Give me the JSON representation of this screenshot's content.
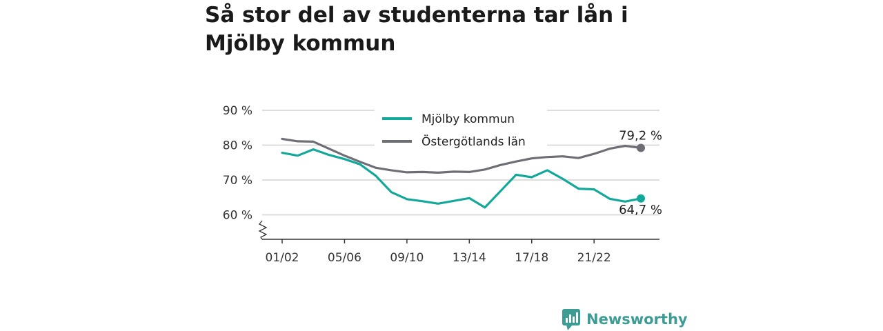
{
  "title": "Så stor del av studenterna tar lån i Mjölby kommun",
  "brand": {
    "name": "Newsworthy",
    "color": "#3d9d94",
    "icon": "newsworthy-logo-icon"
  },
  "colors": {
    "mjolby": "#12a89a",
    "lan": "#6e6e76",
    "grid": "#dddddd",
    "axis": "#333333"
  },
  "chart_data": {
    "type": "line",
    "title": "",
    "xlabel": "",
    "ylabel": "",
    "ylim": [
      53,
      90
    ],
    "y_ticks": [
      60,
      70,
      80,
      90
    ],
    "y_tick_labels": [
      "60 %",
      "70 %",
      "80 %",
      "90 %"
    ],
    "axis_break": true,
    "grid": true,
    "legend": "top-center",
    "x": [
      "01/02",
      "02/03",
      "03/04",
      "04/05",
      "05/06",
      "06/07",
      "07/08",
      "08/09",
      "09/10",
      "10/11",
      "11/12",
      "12/13",
      "13/14",
      "14/15",
      "15/16",
      "16/17",
      "17/18",
      "18/19",
      "19/20",
      "20/21",
      "21/22",
      "22/23",
      "23/24",
      "24/25"
    ],
    "x_tick_labels": [
      "01/02",
      "05/06",
      "09/10",
      "13/14",
      "17/18",
      "21/22"
    ],
    "series": [
      {
        "name": "Mjölby kommun",
        "color": "#12a89a",
        "values": [
          77.8,
          77.0,
          78.8,
          77.2,
          76.0,
          74.5,
          71.2,
          66.5,
          64.5,
          63.9,
          63.2,
          64.0,
          64.8,
          62.1,
          66.8,
          71.5,
          70.8,
          72.8,
          70.3,
          67.5,
          67.3,
          64.6,
          63.8,
          64.7
        ],
        "end_label": "64,7 %"
      },
      {
        "name": "Östergötlands län",
        "color": "#6e6e76",
        "values": [
          81.8,
          81.1,
          81.0,
          79.0,
          77.0,
          75.2,
          73.5,
          72.8,
          72.2,
          72.3,
          72.1,
          72.4,
          72.3,
          73.0,
          74.3,
          75.3,
          76.2,
          76.6,
          76.8,
          76.3,
          77.5,
          79.0,
          79.8,
          79.2
        ],
        "end_label": "79,2 %"
      }
    ]
  }
}
